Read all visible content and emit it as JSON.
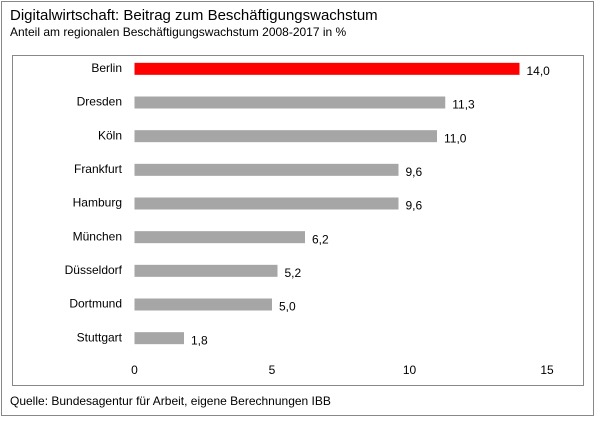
{
  "chart_data": {
    "type": "barh",
    "title": "Digitalwirtschaft: Beitrag zum Beschäftigungswachstum",
    "subtitle": "Anteil am regionalen  Beschäftigungswachstum  2008-2017  in %",
    "categories": [
      "Berlin",
      "Dresden",
      "Köln",
      "Frankfurt",
      "Hamburg",
      "München",
      "Düsseldorf",
      "Dortmund",
      "Stuttgart"
    ],
    "values": [
      14.0,
      11.3,
      11.0,
      9.6,
      9.6,
      6.2,
      5.2,
      5.0,
      1.8
    ],
    "value_labels": [
      "14,0",
      "11,3",
      "11,0",
      "9,6",
      "9,6",
      "6,2",
      "5,2",
      "5,0",
      "1,8"
    ],
    "colors": [
      "#ff0000",
      "#a6a6a6",
      "#a6a6a6",
      "#a6a6a6",
      "#a6a6a6",
      "#a6a6a6",
      "#a6a6a6",
      "#a6a6a6",
      "#a6a6a6"
    ],
    "xlim": [
      0,
      15
    ],
    "xticks": [
      0,
      5,
      10,
      15
    ],
    "source": "Quelle: Bundesagentur für Arbeit, eigene Berechnungen  IBB"
  }
}
